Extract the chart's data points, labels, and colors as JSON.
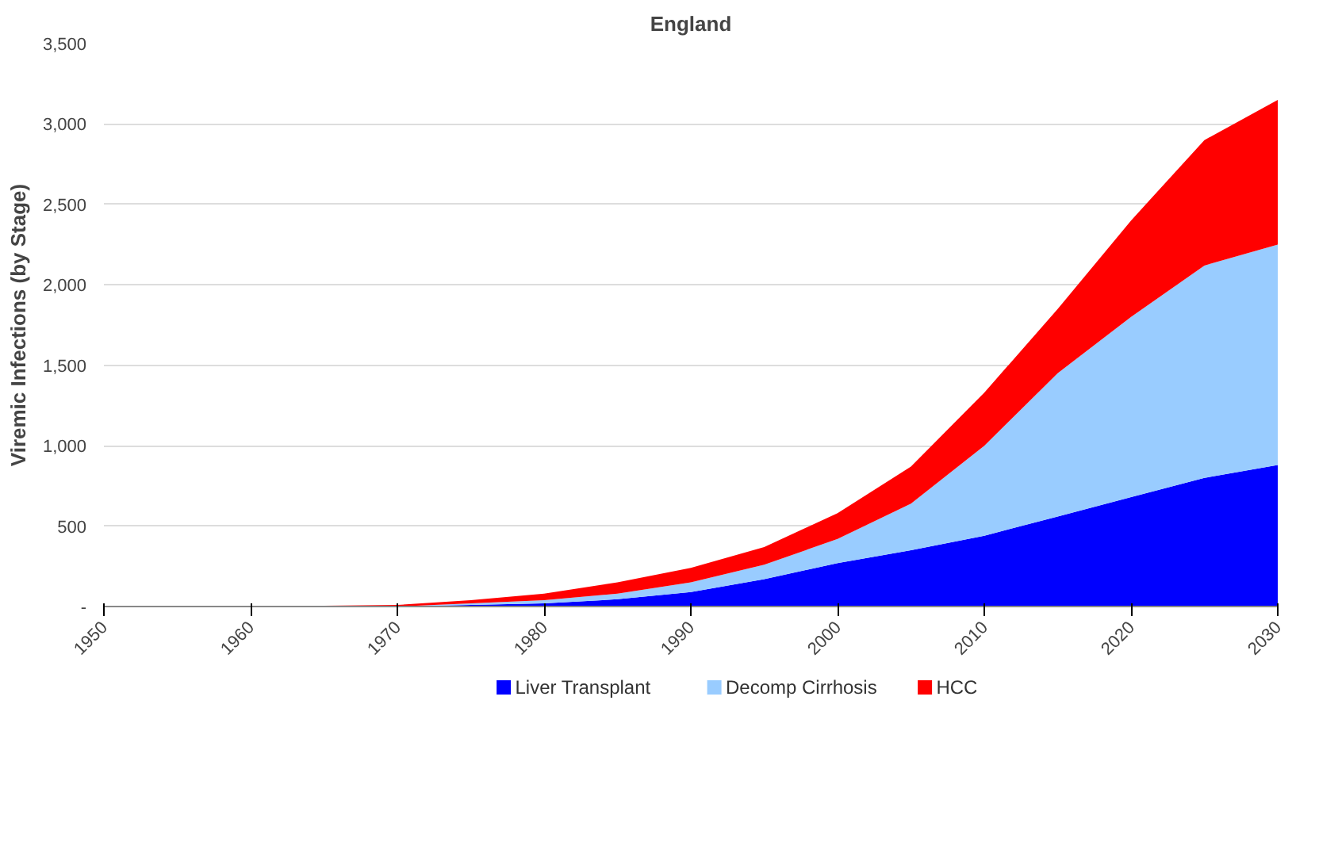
{
  "chart_data": {
    "type": "area",
    "stacked": true,
    "title": "England",
    "ylabel": "Viremic Infections (by Stage)",
    "x": [
      1950,
      1960,
      1970,
      1975,
      1980,
      1985,
      1990,
      1995,
      2000,
      2005,
      2010,
      2015,
      2020,
      2025,
      2030
    ],
    "series": [
      {
        "name": "Liver Transplant",
        "color": "#0000ff",
        "values": [
          0,
          0,
          0,
          10,
          20,
          45,
          90,
          170,
          270,
          350,
          440,
          560,
          680,
          800,
          880
        ]
      },
      {
        "name": "Decomp Cirrhosis",
        "color": "#99ccff",
        "values": [
          0,
          0,
          0,
          10,
          20,
          35,
          60,
          90,
          150,
          290,
          560,
          890,
          1120,
          1320,
          1370
        ]
      },
      {
        "name": "HCC",
        "color": "#ff0000",
        "values": [
          0,
          0,
          10,
          20,
          40,
          70,
          90,
          110,
          160,
          230,
          330,
          400,
          600,
          780,
          900
        ]
      }
    ],
    "xlim": [
      1950,
      2030
    ],
    "xticks": [
      1950,
      1960,
      1970,
      1980,
      1990,
      2000,
      2010,
      2020,
      2030
    ],
    "ylim": [
      0,
      3500
    ],
    "yticks": [
      {
        "value": 0,
        "label": "-"
      },
      {
        "value": 500,
        "label": "500"
      },
      {
        "value": 1000,
        "label": "1,000"
      },
      {
        "value": 1500,
        "label": "1,500"
      },
      {
        "value": 2000,
        "label": "2,000"
      },
      {
        "value": 2500,
        "label": "2,500"
      },
      {
        "value": 3000,
        "label": "3,000"
      },
      {
        "value": 3500,
        "label": "3,500"
      }
    ],
    "grid": "y",
    "legend": "bottom"
  }
}
